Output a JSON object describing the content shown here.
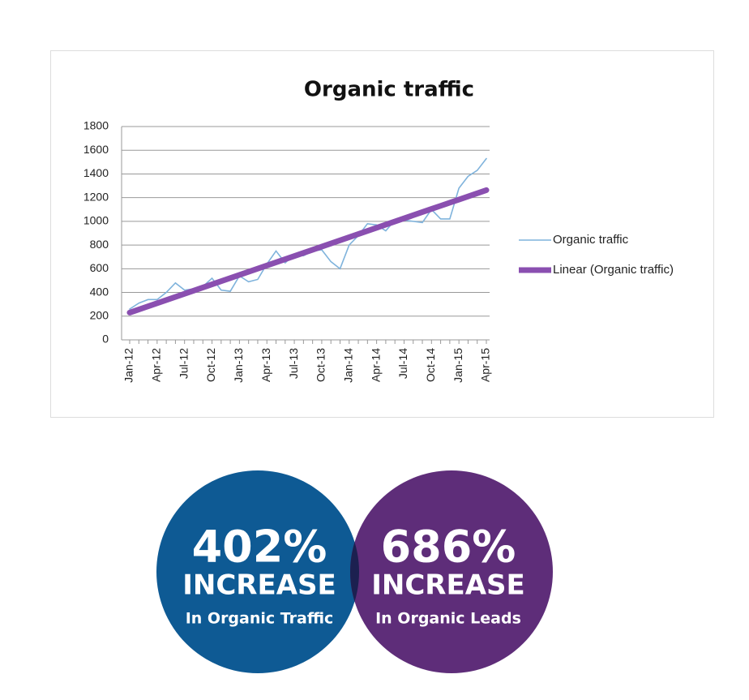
{
  "chart_data": {
    "type": "line",
    "title": "Organic traffic",
    "categories": [
      "Jan-12",
      null,
      null,
      "Apr-12",
      null,
      null,
      "Jul-12",
      null,
      null,
      "Oct-12",
      null,
      null,
      "Jan-13",
      null,
      null,
      "Apr-13",
      null,
      null,
      "Jul-13",
      null,
      null,
      "Oct-13",
      null,
      null,
      "Jan-14",
      null,
      null,
      "Apr-14",
      null,
      null,
      "Jul-14",
      null,
      null,
      "Oct-14",
      null,
      null,
      "Jan-15",
      null,
      null,
      "Apr-15"
    ],
    "series": [
      {
        "name": "Organic traffic",
        "color": "#7fb3dc",
        "values": [
          260,
          310,
          340,
          340,
          400,
          480,
          420,
          430,
          450,
          520,
          420,
          410,
          540,
          490,
          510,
          640,
          750,
          650,
          720,
          710,
          750,
          760,
          660,
          600,
          800,
          880,
          980,
          970,
          920,
          1010,
          1010,
          1000,
          990,
          1100,
          1020,
          1020,
          1280,
          1380,
          1430,
          1530
        ]
      },
      {
        "name": "Linear (Organic traffic)",
        "color": "#8a4fb0",
        "values": [
          230,
          256.5,
          283,
          309.5,
          336,
          362.5,
          389,
          415.5,
          442,
          468.5,
          495,
          521.5,
          548,
          574.5,
          601,
          627.5,
          654,
          680.5,
          707,
          733.5,
          760,
          786.5,
          813,
          839.5,
          866,
          892.5,
          919,
          945.5,
          972,
          998.5,
          1025,
          1051.5,
          1078,
          1104.5,
          1131,
          1157.5,
          1184,
          1210.5,
          1237,
          1263.5
        ]
      }
    ],
    "ylim": [
      0,
      1800
    ],
    "yticks": [
      0,
      200,
      400,
      600,
      800,
      1000,
      1200,
      1400,
      1600,
      1800
    ],
    "grid": true,
    "legend": "right"
  },
  "stats": [
    {
      "value": "402%",
      "label": "INCREASE",
      "sub": "In Organic Traffic",
      "color": "#0e5a94"
    },
    {
      "value": "686%",
      "label": "INCREASE",
      "sub": "In Organic Leads",
      "color": "#5e2d79"
    }
  ]
}
